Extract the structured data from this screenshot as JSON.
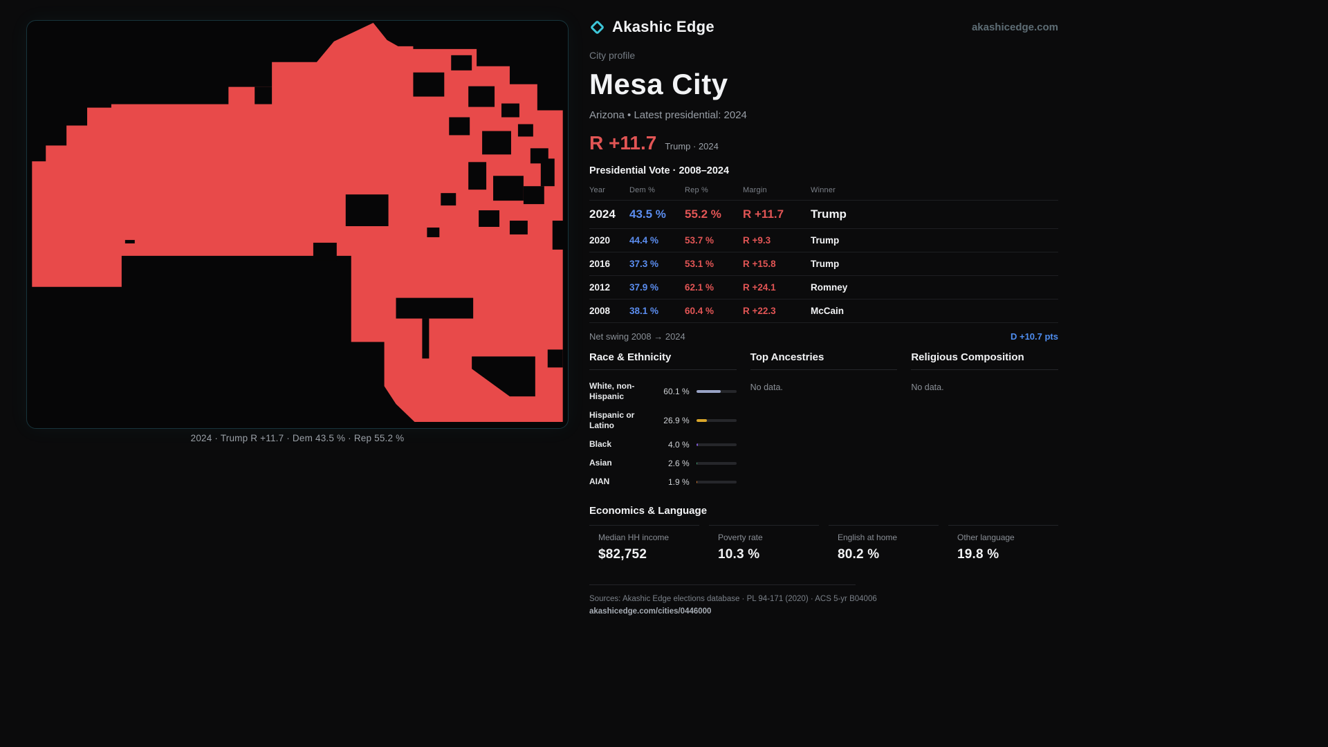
{
  "brand": {
    "name": "Akashic Edge",
    "domain": "akashicedge.com"
  },
  "map": {
    "caption": "2024 · Trump R +11.7 · Dem 43.5 % · Rep 55.2 %",
    "fill_color": "#e84a4a"
  },
  "profile": {
    "kicker": "City profile",
    "city": "Mesa City",
    "subtitle": "Arizona • Latest presidential: 2024",
    "headline_margin": "R +11.7",
    "headline_note": "Trump · 2024"
  },
  "vote_table": {
    "title": "Presidential Vote · 2008–2024",
    "columns": {
      "year": "Year",
      "dem": "Dem %",
      "rep": "Rep %",
      "margin": "Margin",
      "winner": "Winner"
    },
    "rows": [
      {
        "year": "2024",
        "dem": "43.5 %",
        "rep": "55.2 %",
        "margin": "R +11.7",
        "winner": "Trump"
      },
      {
        "year": "2020",
        "dem": "44.4 %",
        "rep": "53.7 %",
        "margin": "R +9.3",
        "winner": "Trump"
      },
      {
        "year": "2016",
        "dem": "37.3 %",
        "rep": "53.1 %",
        "margin": "R +15.8",
        "winner": "Trump"
      },
      {
        "year": "2012",
        "dem": "37.9 %",
        "rep": "62.1 %",
        "margin": "R +24.1",
        "winner": "Romney"
      },
      {
        "year": "2008",
        "dem": "38.1 %",
        "rep": "60.4 %",
        "margin": "R +22.3",
        "winner": "McCain"
      }
    ],
    "net_swing_label": "Net swing 2008 → 2024",
    "net_swing_value": "D +10.7 pts"
  },
  "race_ethnicity": {
    "title": "Race & Ethnicity",
    "rows": [
      {
        "label": "White, non-Hispanic",
        "value": "60.1 %",
        "pct": 60.1,
        "color": "#99a3c6"
      },
      {
        "label": "Hispanic or Latino",
        "value": "26.9 %",
        "pct": 26.9,
        "color": "#d9a62a"
      },
      {
        "label": "Black",
        "value": "4.0 %",
        "pct": 4.0,
        "color": "#8059d8"
      },
      {
        "label": "Asian",
        "value": "2.6 %",
        "pct": 2.6,
        "color": "#3f9e6e"
      },
      {
        "label": "AIAN",
        "value": "1.9 %",
        "pct": 1.9,
        "color": "#d97a2e"
      }
    ]
  },
  "ancestries": {
    "title": "Top Ancestries",
    "empty": "No data."
  },
  "religion": {
    "title": "Religious Composition",
    "empty": "No data."
  },
  "economics": {
    "title": "Economics & Language",
    "stats": [
      {
        "label": "Median HH income",
        "value": "$82,752"
      },
      {
        "label": "Poverty rate",
        "value": "10.3 %"
      },
      {
        "label": "English at home",
        "value": "80.2 %"
      },
      {
        "label": "Other language",
        "value": "19.8 %"
      }
    ]
  },
  "footer": {
    "sources": "Sources: Akashic Edge elections database · PL 94-171 (2020) · ACS 5-yr B04006",
    "permalink": "akashicedge.com/cities/0446000"
  },
  "colors": {
    "dem_blue": "#5b8def",
    "rep_red": "#e25555",
    "swing_blue": "#4f8ef0",
    "accent_teal": "#3ec6d8",
    "background": "#0b0b0c"
  }
}
